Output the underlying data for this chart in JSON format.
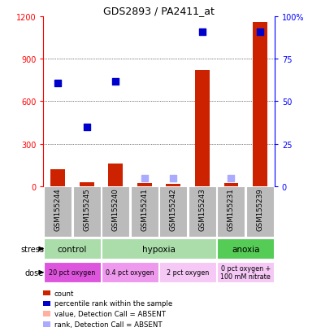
{
  "title": "GDS2893 / PA2411_at",
  "samples": [
    "GSM155244",
    "GSM155245",
    "GSM155240",
    "GSM155241",
    "GSM155242",
    "GSM155243",
    "GSM155231",
    "GSM155239"
  ],
  "count_values": [
    120,
    30,
    160,
    20,
    15,
    820,
    20,
    1160
  ],
  "count_absent": [
    false,
    false,
    false,
    false,
    false,
    false,
    false,
    false
  ],
  "rank_values": [
    730,
    420,
    740,
    55,
    55,
    1090,
    55,
    1090
  ],
  "rank_absent": [
    false,
    false,
    false,
    true,
    true,
    false,
    true,
    false
  ],
  "ylim_left": [
    0,
    1200
  ],
  "yticks_left": [
    0,
    300,
    600,
    900,
    1200
  ],
  "right_ticks": [
    0,
    300,
    600,
    900,
    1200
  ],
  "right_labels": [
    "0",
    "25",
    "50",
    "75",
    "100%"
  ],
  "stress_groups": [
    {
      "label": "control",
      "cols": [
        0,
        1
      ],
      "color": "#aaddaa"
    },
    {
      "label": "hypoxia",
      "cols": [
        2,
        3,
        4,
        5
      ],
      "color": "#aaddaa"
    },
    {
      "label": "anoxia",
      "cols": [
        6,
        7
      ],
      "color": "#55cc55"
    }
  ],
  "dose_groups": [
    {
      "label": "20 pct oxygen",
      "cols": [
        0,
        1
      ],
      "color": "#dd55dd"
    },
    {
      "label": "0.4 pct oxygen",
      "cols": [
        2,
        3
      ],
      "color": "#ee99ee"
    },
    {
      "label": "2 pct oxygen",
      "cols": [
        4,
        5
      ],
      "color": "#f5c8f5"
    },
    {
      "label": "0 pct oxygen +\n100 mM nitrate",
      "cols": [
        6,
        7
      ],
      "color": "#f5c8f5"
    }
  ],
  "bar_color_present": "#CC2200",
  "bar_color_absent": "#FFB0A0",
  "dot_color_present": "#0000CC",
  "dot_color_absent": "#AAAAFF",
  "sample_bg_color": "#BBBBBB",
  "legend_items": [
    {
      "color": "#CC2200",
      "label": "count"
    },
    {
      "color": "#0000CC",
      "label": "percentile rank within the sample"
    },
    {
      "color": "#FFB0A0",
      "label": "value, Detection Call = ABSENT"
    },
    {
      "color": "#AAAAFF",
      "label": "rank, Detection Call = ABSENT"
    }
  ]
}
